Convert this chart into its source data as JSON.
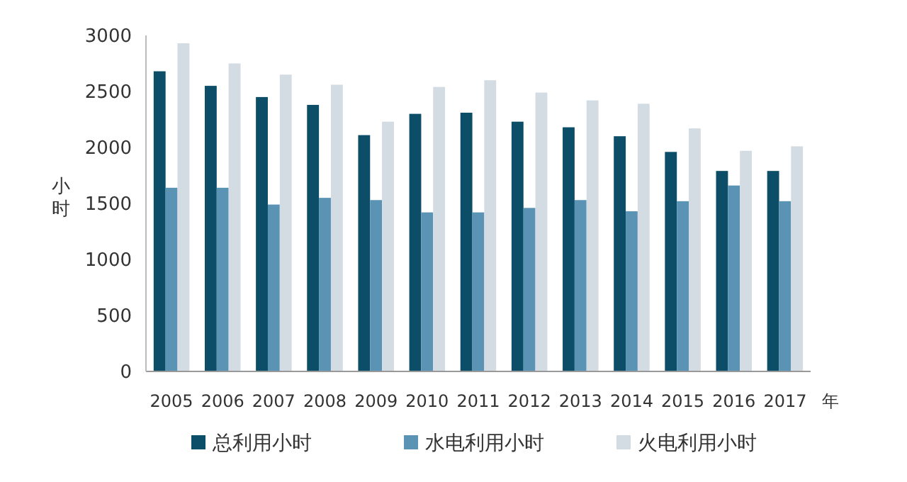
{
  "chart_data": {
    "type": "bar",
    "xlabel": "年",
    "ylabel": "小时",
    "categories": [
      "2005",
      "2006",
      "2007",
      "2008",
      "2009",
      "2010",
      "2011",
      "2012",
      "2013",
      "2014",
      "2015",
      "2016",
      "2017"
    ],
    "series": [
      {
        "name": "总利用小时",
        "color": "#0c4d68",
        "values": [
          2680,
          2550,
          2450,
          2380,
          2110,
          2300,
          2310,
          2230,
          2180,
          2100,
          1960,
          1790,
          1790
        ]
      },
      {
        "name": "水电利用小时",
        "color": "#5b93b5",
        "values": [
          1640,
          1640,
          1490,
          1550,
          1530,
          1420,
          1420,
          1460,
          1530,
          1430,
          1520,
          1660,
          1520
        ]
      },
      {
        "name": "火电利用小时",
        "color": "#d3dbe3",
        "values": [
          2930,
          2750,
          2650,
          2560,
          2230,
          2540,
          2600,
          2490,
          2420,
          2390,
          2170,
          1970,
          2010
        ]
      }
    ],
    "ylim": [
      0,
      3000
    ],
    "yticks": [
      0,
      500,
      1000,
      1500,
      2000,
      2500,
      3000
    ],
    "grid": false,
    "legend": "bottom"
  }
}
